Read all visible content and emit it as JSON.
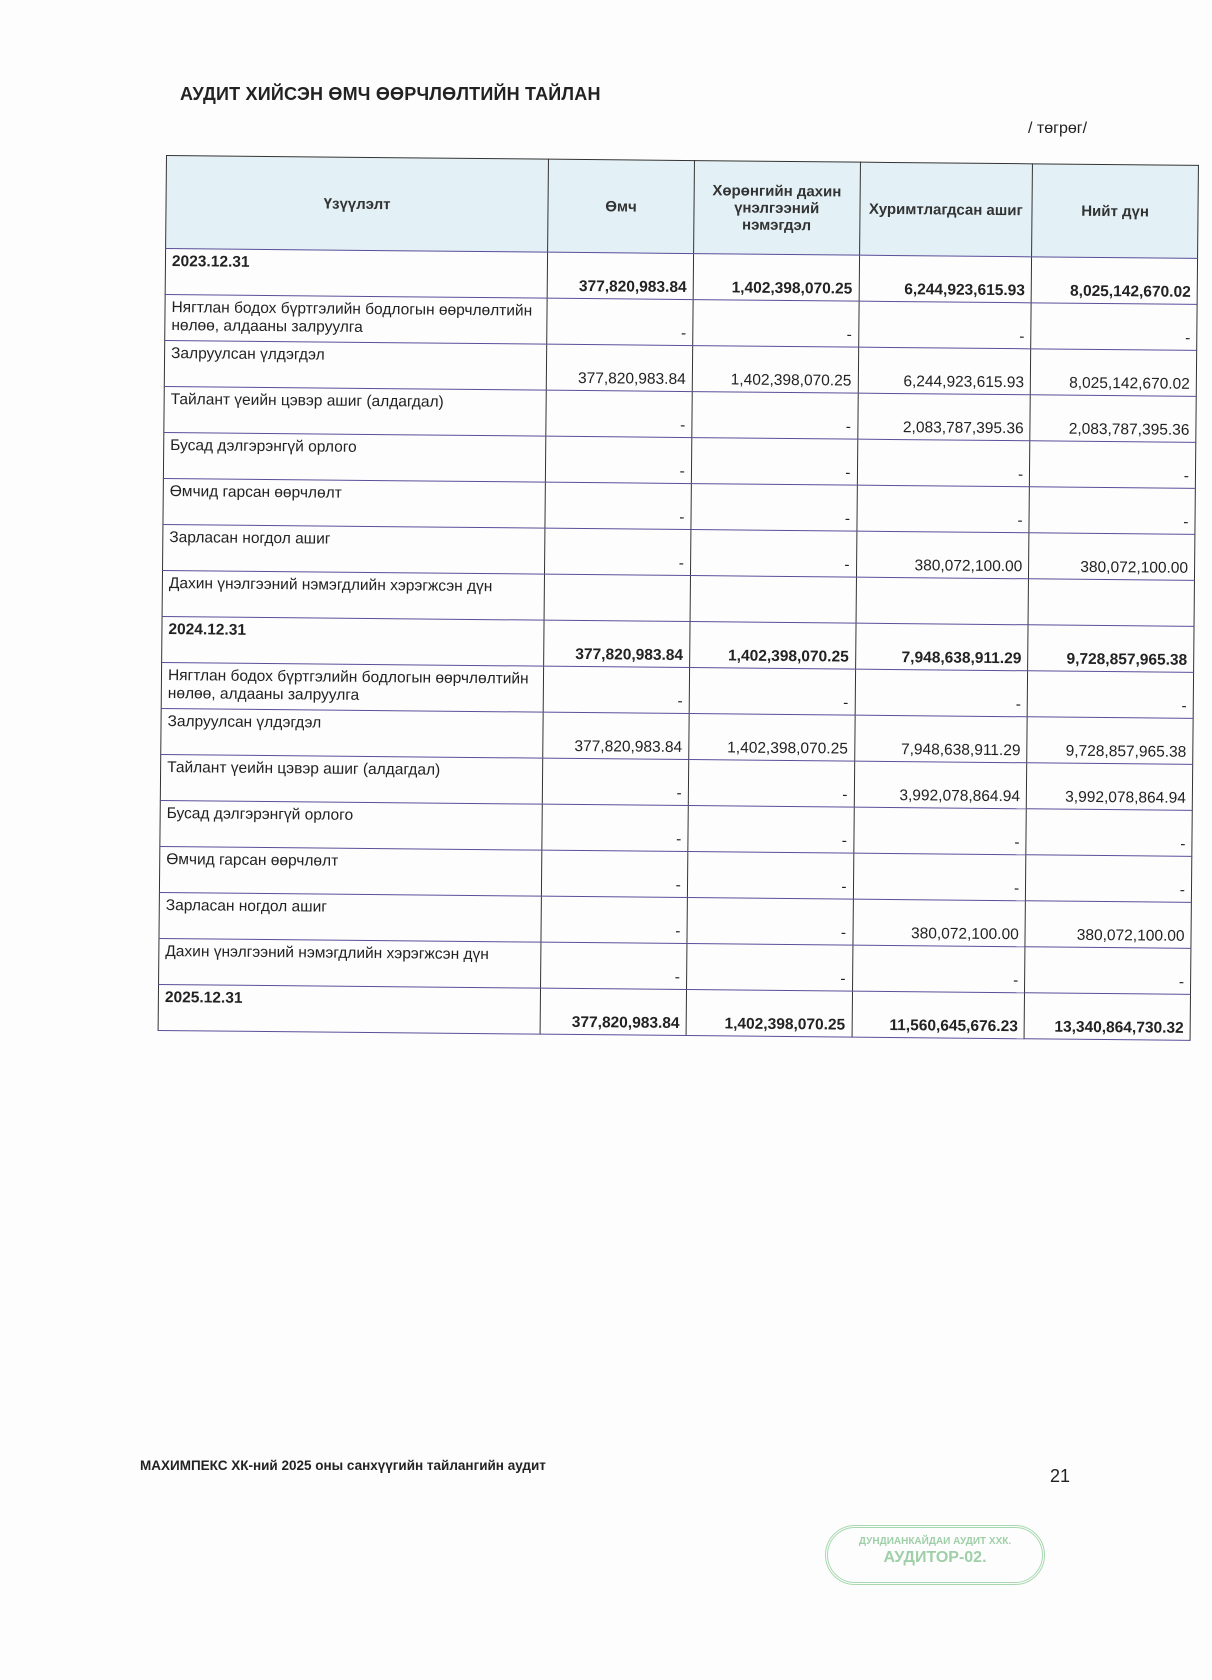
{
  "title": "АУДИТ ХИЙСЭН ӨМЧ ӨӨРЧЛӨЛТИЙН ТАЙЛАН",
  "unit": "/ төгрөг/",
  "headers": [
    "Үзүүлэлт",
    "Өмч",
    "Хөрөнгийн дахин үнэлгээний нэмэгдэл",
    "Хуримтлагдсан ашиг",
    "Нийт дүн"
  ],
  "rows": [
    {
      "label": "2023.12.31",
      "bold": true,
      "v": [
        "377,820,983.84",
        "1,402,398,070.25",
        "6,244,923,615.93",
        "8,025,142,670.02"
      ]
    },
    {
      "label": "Нягтлан бодох бүртгэлийн бодлогын өөрчлөлтийн нөлөө, алдааны залруулга",
      "v": [
        "-",
        "-",
        "-",
        "-"
      ]
    },
    {
      "label": "Залруулсан үлдэгдэл",
      "v": [
        "377,820,983.84",
        "1,402,398,070.25",
        "6,244,923,615.93",
        "8,025,142,670.02"
      ]
    },
    {
      "label": "Тайлант үеийн цэвэр ашиг (алдагдал)",
      "v": [
        "-",
        "-",
        "2,083,787,395.36",
        "2,083,787,395.36"
      ]
    },
    {
      "label": "Бусад дэлгэрэнгүй орлого",
      "v": [
        "-",
        "-",
        "-",
        "-"
      ]
    },
    {
      "label": "Өмчид гарсан өөрчлөлт",
      "v": [
        "-",
        "-",
        "-",
        "-"
      ]
    },
    {
      "label": "Зарласан ногдол ашиг",
      "v": [
        "-",
        "-",
        "380,072,100.00",
        "380,072,100.00"
      ]
    },
    {
      "label": "Дахин үнэлгээний нэмэгдлийн хэрэгжсэн дүн",
      "v": [
        "",
        "",
        "",
        ""
      ]
    },
    {
      "label": "2024.12.31",
      "bold": true,
      "v": [
        "377,820,983.84",
        "1,402,398,070.25",
        "7,948,638,911.29",
        "9,728,857,965.38"
      ]
    },
    {
      "label": "Нягтлан бодох бүртгэлийн бодлогын өөрчлөлтийн нөлөө, алдааны залруулга",
      "v": [
        "-",
        "-",
        "-",
        "-"
      ]
    },
    {
      "label": "Залруулсан үлдэгдэл",
      "v": [
        "377,820,983.84",
        "1,402,398,070.25",
        "7,948,638,911.29",
        "9,728,857,965.38"
      ]
    },
    {
      "label": "Тайлант үеийн цэвэр ашиг (алдагдал)",
      "v": [
        "-",
        "-",
        "3,992,078,864.94",
        "3,992,078,864.94"
      ]
    },
    {
      "label": "Бусад дэлгэрэнгүй орлого",
      "v": [
        "-",
        "-",
        "-",
        "-"
      ]
    },
    {
      "label": "Өмчид гарсан өөрчлөлт",
      "v": [
        "-",
        "-",
        "-",
        "-"
      ]
    },
    {
      "label": "Зарласан ногдол ашиг",
      "v": [
        "-",
        "-",
        "380,072,100.00",
        "380,072,100.00"
      ]
    },
    {
      "label": "Дахин үнэлгээний нэмэгдлийн хэрэгжсэн дүн",
      "v": [
        "-",
        "-",
        "-",
        "-"
      ]
    },
    {
      "label": "2025.12.31",
      "bold": true,
      "v": [
        "377,820,983.84",
        "1,402,398,070.25",
        "11,560,645,676.23",
        "13,340,864,730.32"
      ]
    }
  ],
  "footer": "МАХИМПЕКС  ХК-ний 2025 оны санхүүгийн тайлангийн аудит",
  "page_number": "21",
  "stamp": {
    "line1": "ДУНДИАНКАЙДАИ АУДИТ ХХК.",
    "line2": "АУДИТОР-02."
  },
  "colors": {
    "header_bg": "#e3f1f6",
    "stamp": "#9fcfa8"
  }
}
